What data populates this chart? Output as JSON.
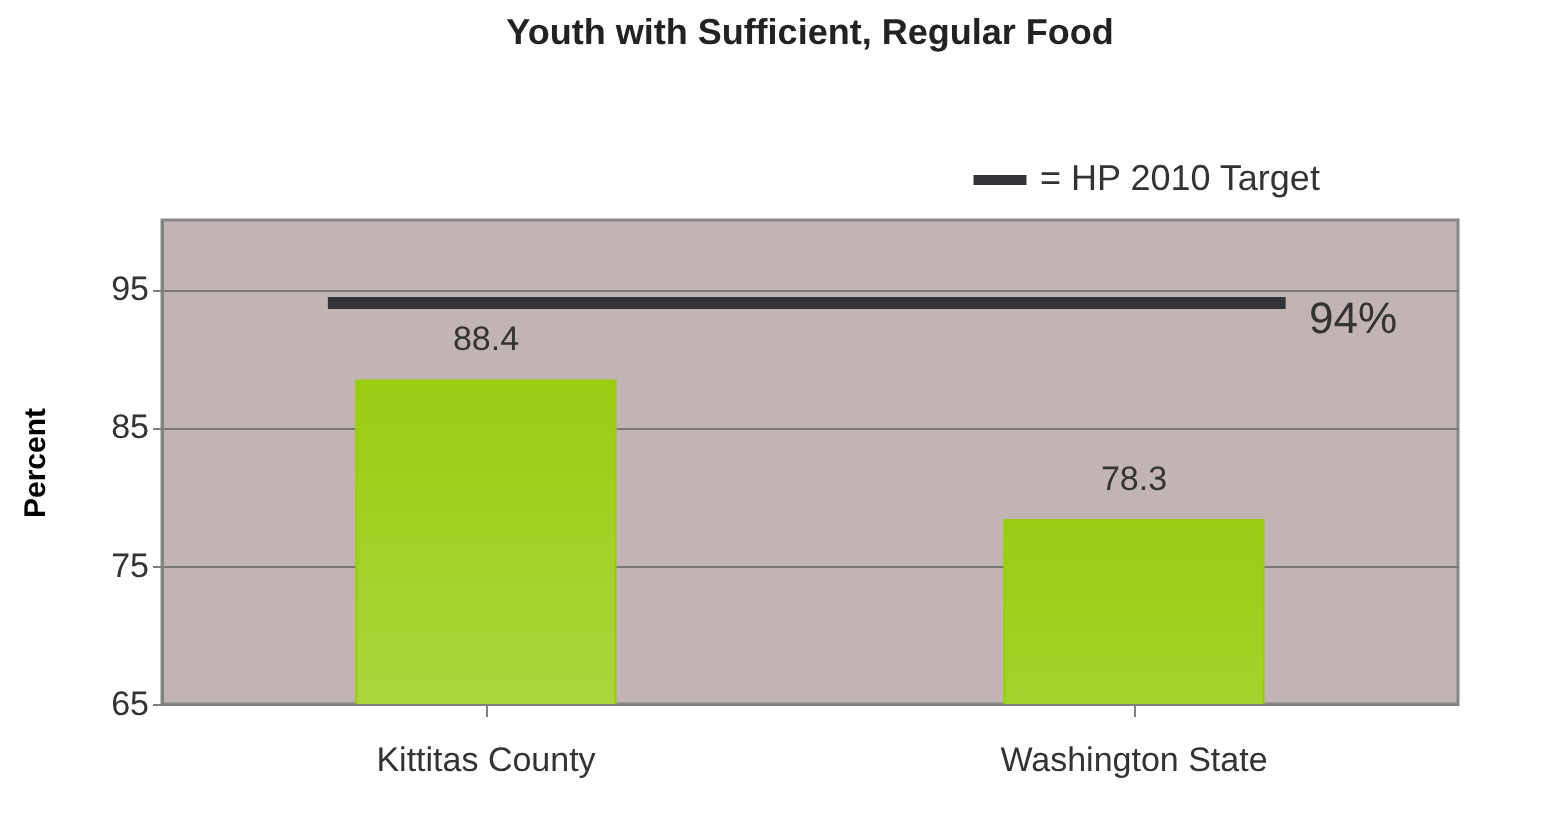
{
  "chart_data": {
    "type": "bar",
    "title": "Youth with Sufficient, Regular Food",
    "ylabel": "Percent",
    "categories": [
      "Kittitas County",
      "Washington State"
    ],
    "values": [
      88.4,
      78.3
    ],
    "color": "#99cc11",
    "data_labels": true,
    "ylim": [
      65,
      100
    ],
    "yticks": [
      65,
      75,
      85,
      95
    ],
    "grid": "y",
    "ref_lines": [
      {
        "axis": "y",
        "value": 94,
        "label": "94%",
        "color": "#333338"
      }
    ],
    "annotations": [
      "= HP 2010 Target"
    ],
    "legend": "top right"
  }
}
